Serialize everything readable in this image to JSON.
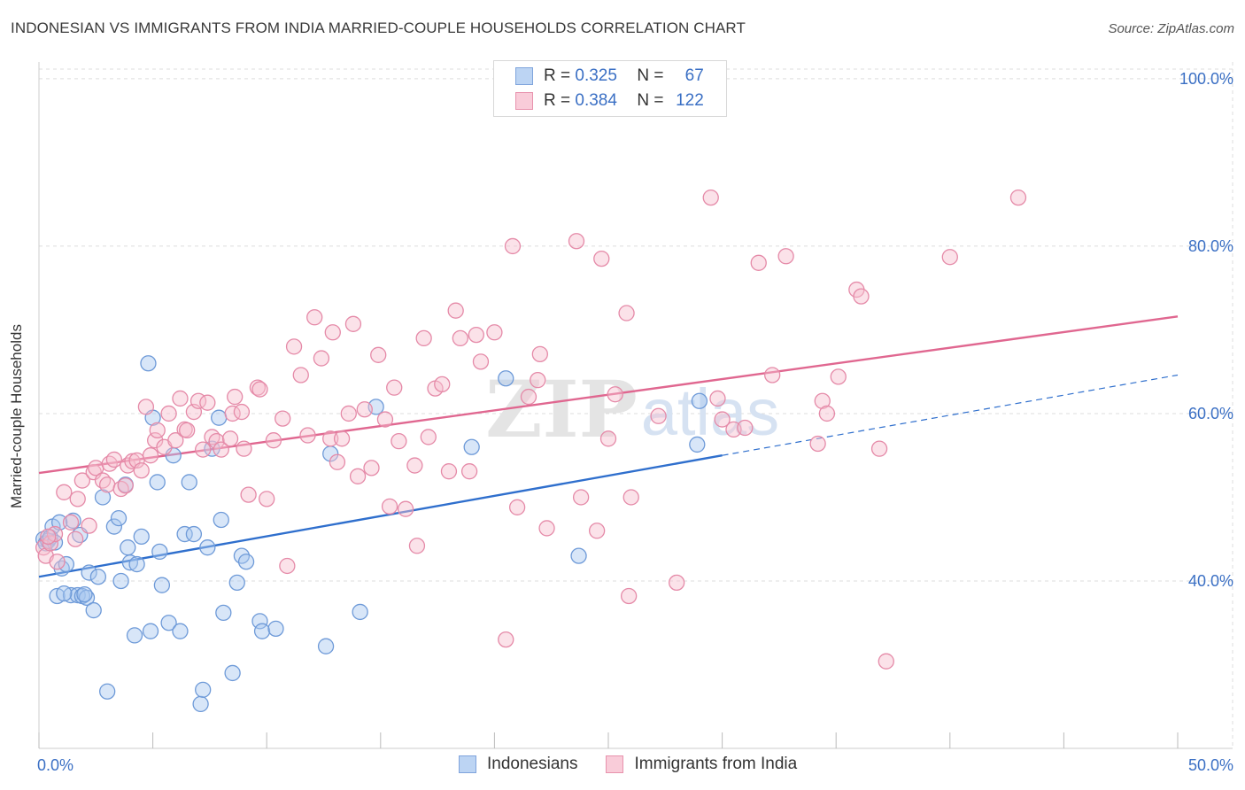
{
  "title": "INDONESIAN VS IMMIGRANTS FROM INDIA MARRIED-COUPLE HOUSEHOLDS CORRELATION CHART",
  "source": "Source: ZipAtlas.com",
  "watermark": {
    "zip": "ZIP",
    "atlas": "atlas"
  },
  "legend_top": [
    {
      "r_label": "R =",
      "r_value": "0.325",
      "n_label": "N =",
      "n_value": "67"
    },
    {
      "r_label": "R =",
      "r_value": "0.384",
      "n_label": "N =",
      "n_value": "122"
    }
  ],
  "colors": {
    "blue_fill": "#a9c8f0",
    "blue_stroke": "#6e9ad8",
    "blue_line": "#2f6fcd",
    "pink_fill": "#f7bfcf",
    "pink_stroke": "#e58aa8",
    "pink_line": "#e06790",
    "tick_label": "#3a6fc4",
    "grid": "#dddddd"
  },
  "chart_data": {
    "type": "scatter",
    "title": "INDONESIAN VS IMMIGRANTS FROM INDIA MARRIED-COUPLE HOUSEHOLDS CORRELATION CHART",
    "xlabel": "",
    "ylabel": "Married-couple Households",
    "xlim": [
      0,
      50
    ],
    "ylim": [
      20,
      102
    ],
    "x_tick_labels": [
      "0.0%",
      "50.0%"
    ],
    "y_ticks": [
      40,
      60,
      80,
      100
    ],
    "y_tick_labels": [
      "40.0%",
      "60.0%",
      "80.0%",
      "100.0%"
    ],
    "grid": true,
    "legend_position": "top-center",
    "series": [
      {
        "name": "Indonesians",
        "color": "#6e9ad8",
        "r": 0.325,
        "n": 67,
        "trend": {
          "x0": 0,
          "y0": 40.5,
          "x1": 30,
          "y1": 55.0,
          "dash_to_x": 50,
          "dash_to_y": 64.6
        },
        "points": [
          [
            0.2,
            45
          ],
          [
            0.3,
            44.5
          ],
          [
            0.4,
            44.8
          ],
          [
            0.5,
            45.2
          ],
          [
            0.6,
            46.5
          ],
          [
            0.7,
            44.6
          ],
          [
            0.8,
            38.2
          ],
          [
            1.0,
            41.5
          ],
          [
            1.2,
            42
          ],
          [
            1.4,
            38.3
          ],
          [
            1.5,
            47.2
          ],
          [
            1.7,
            38.3
          ],
          [
            1.8,
            45.5
          ],
          [
            1.9,
            38.2
          ],
          [
            2.1,
            38
          ],
          [
            2.2,
            41
          ],
          [
            2.4,
            36.5
          ],
          [
            2.6,
            40.5
          ],
          [
            2.8,
            50
          ],
          [
            3.0,
            26.8
          ],
          [
            3.3,
            46.5
          ],
          [
            3.5,
            47.5
          ],
          [
            3.6,
            40
          ],
          [
            3.8,
            51.5
          ],
          [
            3.9,
            44
          ],
          [
            4.0,
            42.2
          ],
          [
            4.2,
            33.5
          ],
          [
            4.3,
            42
          ],
          [
            4.5,
            45.3
          ],
          [
            4.8,
            66
          ],
          [
            4.9,
            34
          ],
          [
            5.0,
            59.5
          ],
          [
            5.2,
            51.8
          ],
          [
            5.3,
            43.5
          ],
          [
            5.4,
            39.5
          ],
          [
            5.7,
            35
          ],
          [
            5.9,
            55
          ],
          [
            6.2,
            34
          ],
          [
            6.4,
            45.6
          ],
          [
            6.6,
            51.8
          ],
          [
            6.8,
            45.6
          ],
          [
            7.1,
            25.3
          ],
          [
            7.2,
            27
          ],
          [
            7.4,
            44
          ],
          [
            7.6,
            55.8
          ],
          [
            7.9,
            59.5
          ],
          [
            8.0,
            47.3
          ],
          [
            8.1,
            36.2
          ],
          [
            8.5,
            29
          ],
          [
            8.7,
            39.8
          ],
          [
            8.9,
            43
          ],
          [
            9.1,
            42.3
          ],
          [
            9.7,
            35.2
          ],
          [
            9.8,
            34
          ],
          [
            10.4,
            34.3
          ],
          [
            12.6,
            32.2
          ],
          [
            12.8,
            55.2
          ],
          [
            14.1,
            36.3
          ],
          [
            14.8,
            60.8
          ],
          [
            19.0,
            56
          ],
          [
            20.5,
            64.2
          ],
          [
            23.7,
            43
          ],
          [
            28.9,
            56.3
          ],
          [
            29.0,
            61.5
          ],
          [
            0.9,
            47
          ],
          [
            1.1,
            38.5
          ],
          [
            2.0,
            38.4
          ]
        ]
      },
      {
        "name": "Immigrants from India",
        "color": "#e58aa8",
        "r": 0.384,
        "n": 122,
        "trend": {
          "x0": 0,
          "y0": 52.9,
          "x1": 50,
          "y1": 71.6
        },
        "points": [
          [
            0.2,
            44
          ],
          [
            0.3,
            43
          ],
          [
            0.5,
            44.5
          ],
          [
            0.7,
            45.6
          ],
          [
            0.8,
            42.3
          ],
          [
            1.1,
            50.6
          ],
          [
            1.4,
            47
          ],
          [
            1.7,
            49.8
          ],
          [
            1.9,
            52
          ],
          [
            2.2,
            46.6
          ],
          [
            2.4,
            53
          ],
          [
            2.5,
            53.5
          ],
          [
            2.8,
            52
          ],
          [
            3.0,
            51.5
          ],
          [
            3.1,
            54
          ],
          [
            3.3,
            54.5
          ],
          [
            3.6,
            51
          ],
          [
            3.9,
            53.8
          ],
          [
            4.1,
            54.3
          ],
          [
            4.3,
            54.4
          ],
          [
            4.5,
            53.2
          ],
          [
            4.7,
            60.8
          ],
          [
            4.9,
            55
          ],
          [
            5.1,
            56.8
          ],
          [
            5.2,
            58
          ],
          [
            5.5,
            56
          ],
          [
            5.7,
            60
          ],
          [
            6.0,
            56.8
          ],
          [
            6.2,
            61.8
          ],
          [
            6.4,
            58.1
          ],
          [
            6.5,
            58
          ],
          [
            6.8,
            60.2
          ],
          [
            7.0,
            61.5
          ],
          [
            7.2,
            55.7
          ],
          [
            7.4,
            61.3
          ],
          [
            7.6,
            57.2
          ],
          [
            7.8,
            56.7
          ],
          [
            8.0,
            55.7
          ],
          [
            8.4,
            57
          ],
          [
            8.5,
            60
          ],
          [
            8.6,
            62
          ],
          [
            8.9,
            60.2
          ],
          [
            9.0,
            55.8
          ],
          [
            9.2,
            50.3
          ],
          [
            9.6,
            63.1
          ],
          [
            9.7,
            62.9
          ],
          [
            10.0,
            49.8
          ],
          [
            10.3,
            56.8
          ],
          [
            10.7,
            59.4
          ],
          [
            10.9,
            41.8
          ],
          [
            11.2,
            68
          ],
          [
            11.5,
            64.6
          ],
          [
            11.8,
            57.4
          ],
          [
            12.1,
            71.5
          ],
          [
            12.4,
            66.6
          ],
          [
            12.8,
            57
          ],
          [
            12.9,
            69.7
          ],
          [
            13.1,
            54.2
          ],
          [
            13.3,
            57
          ],
          [
            13.6,
            60
          ],
          [
            13.8,
            70.7
          ],
          [
            14.0,
            52.5
          ],
          [
            14.3,
            60.5
          ],
          [
            14.6,
            53.5
          ],
          [
            14.9,
            67
          ],
          [
            15.2,
            59.3
          ],
          [
            15.4,
            48.9
          ],
          [
            15.6,
            63.1
          ],
          [
            15.8,
            56.7
          ],
          [
            16.1,
            48.6
          ],
          [
            16.5,
            53.8
          ],
          [
            16.6,
            44.2
          ],
          [
            16.9,
            69
          ],
          [
            17.1,
            57.2
          ],
          [
            17.4,
            63
          ],
          [
            17.7,
            63.5
          ],
          [
            18.0,
            53.1
          ],
          [
            18.3,
            72.3
          ],
          [
            18.5,
            69
          ],
          [
            18.9,
            53.1
          ],
          [
            19.2,
            69.4
          ],
          [
            19.4,
            66.2
          ],
          [
            20.0,
            69.7
          ],
          [
            20.5,
            33
          ],
          [
            20.8,
            80
          ],
          [
            21.0,
            48.8
          ],
          [
            21.5,
            62
          ],
          [
            21.9,
            64
          ],
          [
            22.0,
            67.1
          ],
          [
            22.3,
            46.3
          ],
          [
            23.6,
            80.6
          ],
          [
            23.8,
            50
          ],
          [
            24.5,
            46
          ],
          [
            24.7,
            78.5
          ],
          [
            25.0,
            57
          ],
          [
            25.3,
            62.3
          ],
          [
            25.8,
            72
          ],
          [
            25.9,
            38.2
          ],
          [
            26.0,
            50
          ],
          [
            27.2,
            59.7
          ],
          [
            28.0,
            39.8
          ],
          [
            29.5,
            85.8
          ],
          [
            29.8,
            61.8
          ],
          [
            30.0,
            59.3
          ],
          [
            30.5,
            58.1
          ],
          [
            31.0,
            58.3
          ],
          [
            31.6,
            78
          ],
          [
            32.2,
            64.6
          ],
          [
            32.8,
            78.8
          ],
          [
            34.2,
            56.4
          ],
          [
            34.4,
            61.5
          ],
          [
            34.6,
            60
          ],
          [
            35.1,
            64.4
          ],
          [
            35.9,
            74.8
          ],
          [
            36.1,
            74
          ],
          [
            36.9,
            55.8
          ],
          [
            37.2,
            30.4
          ],
          [
            40.0,
            78.7
          ],
          [
            43.0,
            85.8
          ],
          [
            3.8,
            51.4
          ],
          [
            0.4,
            45.3
          ],
          [
            1.6,
            45
          ]
        ]
      }
    ]
  },
  "legend_bottom": [
    "Indonesians",
    "Immigrants from India"
  ]
}
